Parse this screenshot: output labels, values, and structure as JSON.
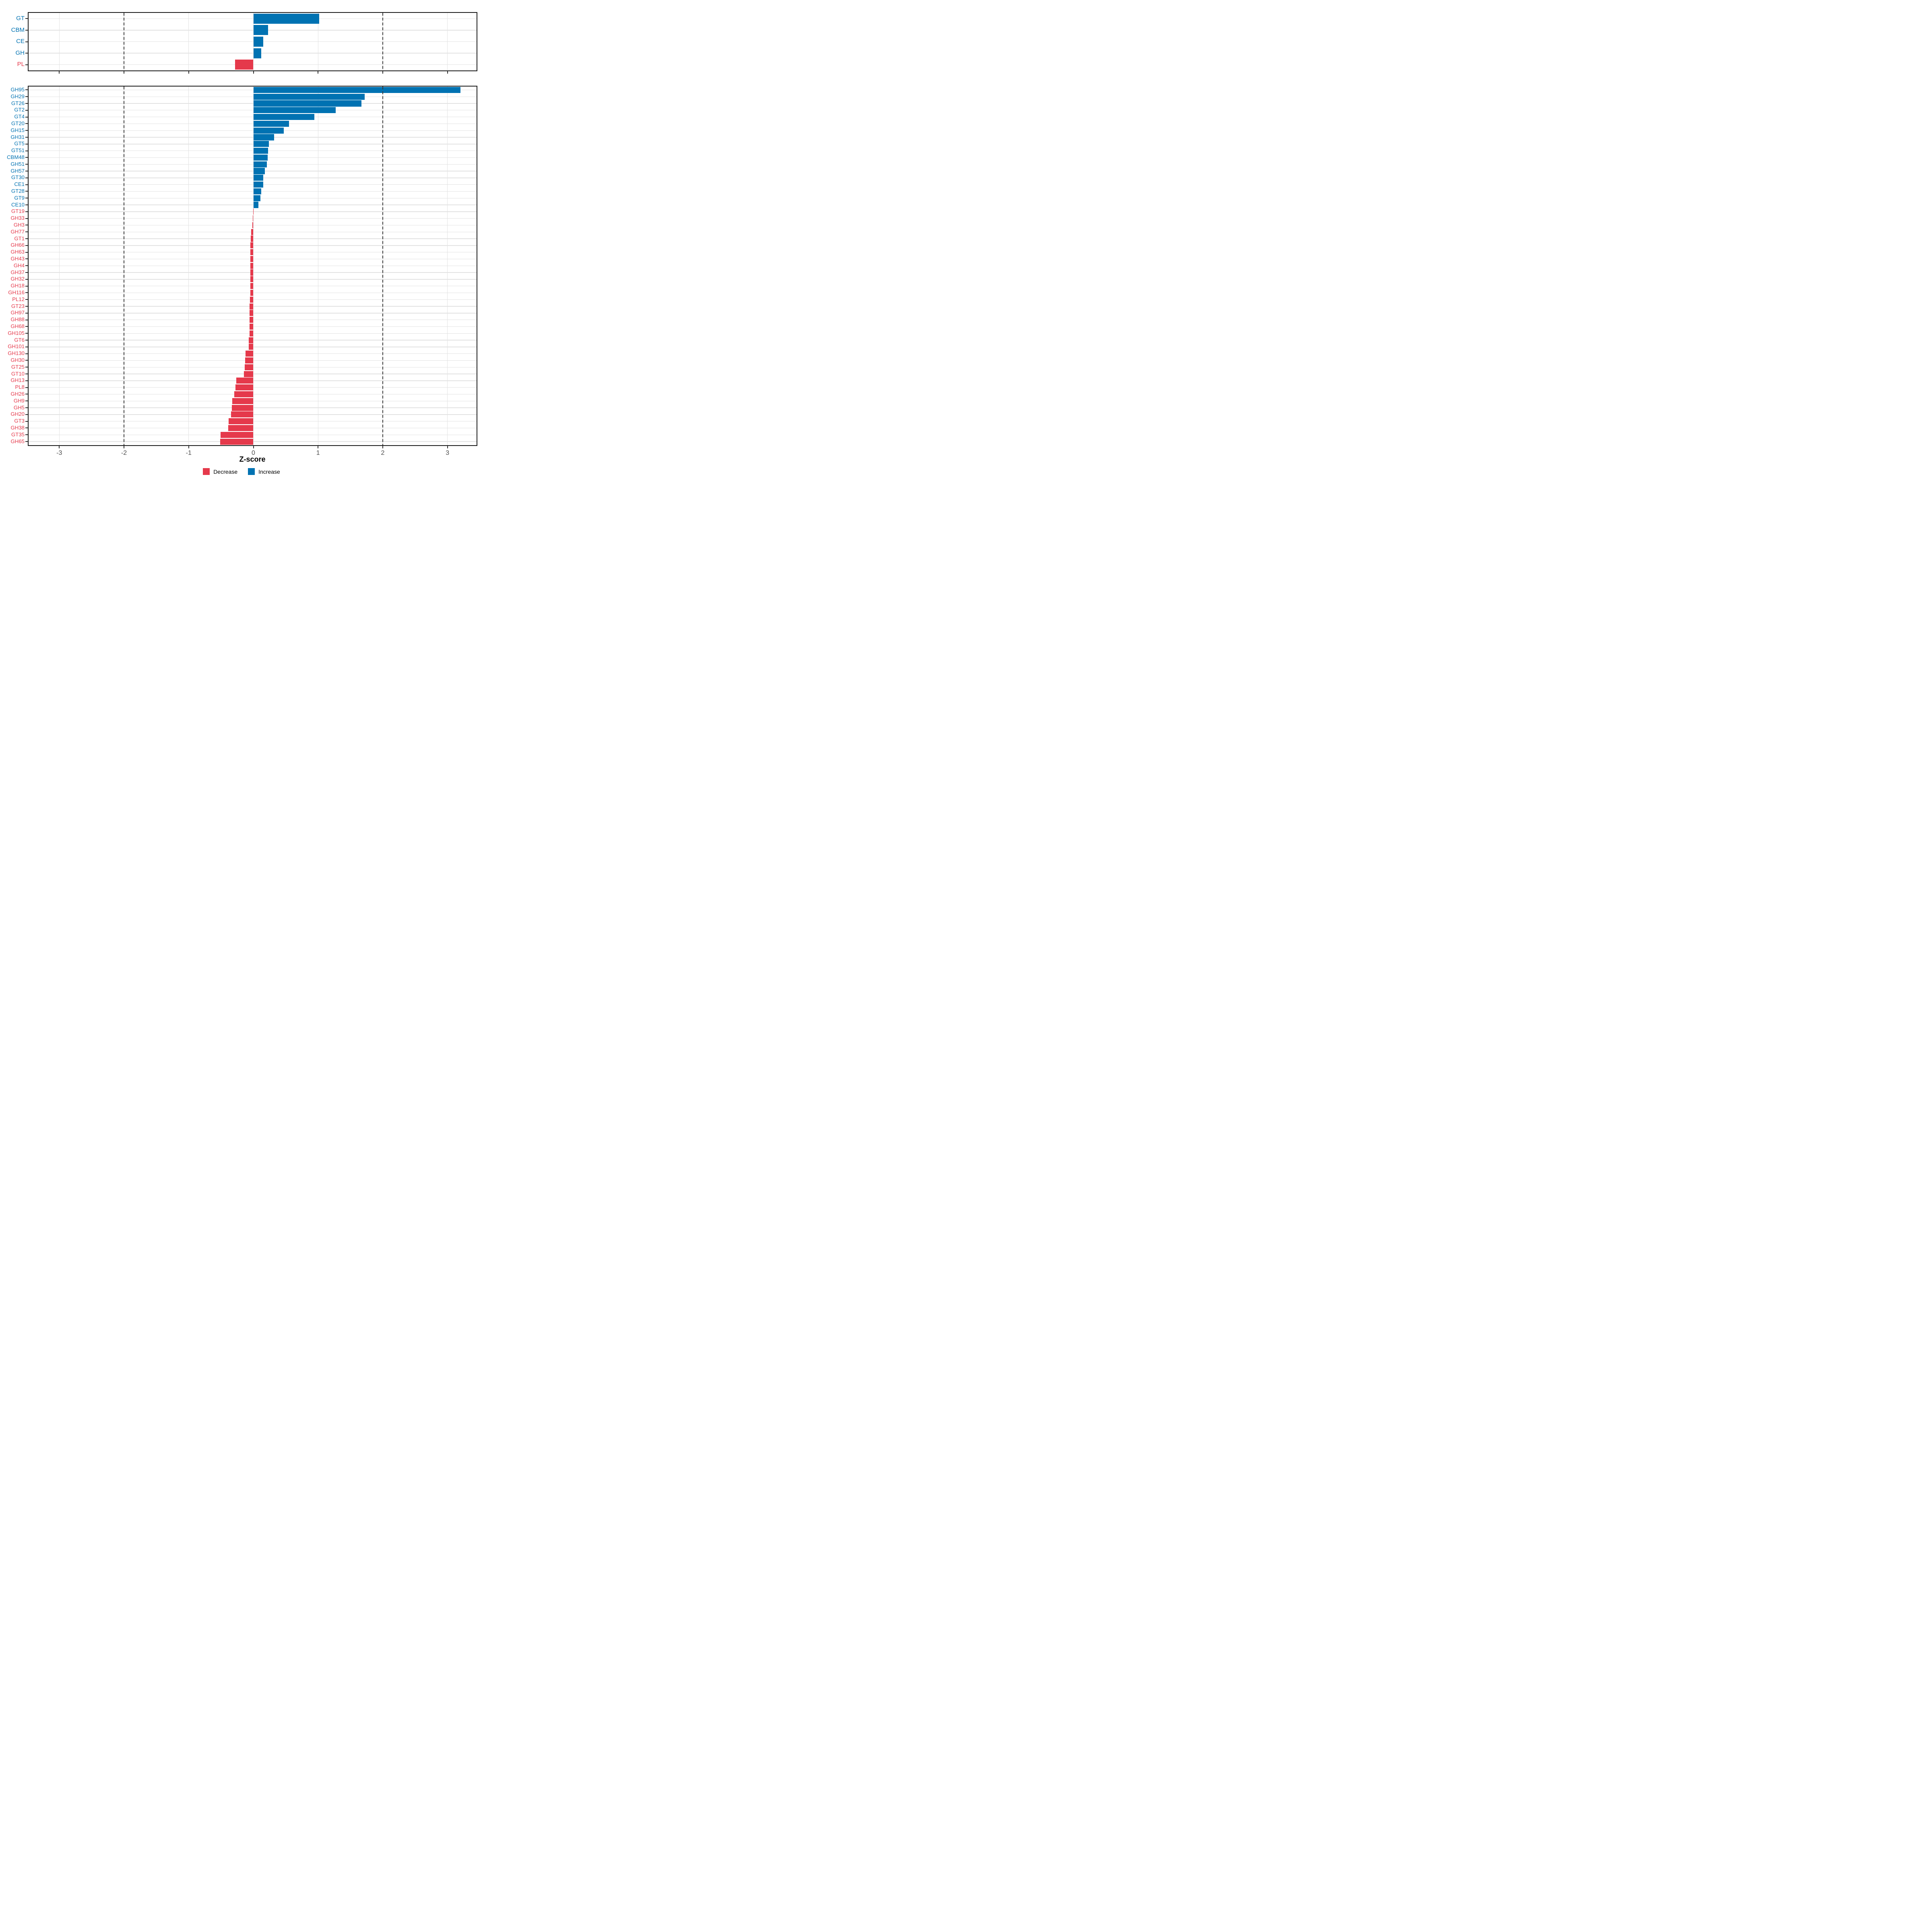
{
  "axis": {
    "xlabel": "Z-score",
    "xticks": [
      -3,
      -2,
      -1,
      0,
      1,
      2,
      3
    ],
    "xtick_labels": [
      "-3",
      "-2",
      "-1",
      "0",
      "1",
      "2",
      "3"
    ],
    "xlim": [
      -3.49,
      3.46
    ],
    "dashed_reference_lines": [
      -2,
      2
    ],
    "grid": "major-only"
  },
  "legend": {
    "position": "bottom-center",
    "items": [
      {
        "label": "Decrease",
        "color": "#E5394B"
      },
      {
        "label": "Increase",
        "color": "#0072B2"
      }
    ]
  },
  "colors": {
    "increase": "#0072B2",
    "decrease": "#E5394B",
    "gridline": "#e2e2e2",
    "panel_border": "#1a1a1a",
    "tick_text": "#4d4d4d",
    "background": "#ffffff"
  },
  "chart_data": [
    {
      "id": "cazyme-class-panel",
      "type": "bar",
      "orientation": "horizontal",
      "title": "",
      "xlabel": "Z-score",
      "xlim": [
        -3.49,
        3.46
      ],
      "xticks": [
        -3,
        -2,
        -1,
        0,
        1,
        2,
        3
      ],
      "dashed_reference_lines": [
        -2,
        2
      ],
      "categories": [
        "GT",
        "CBM",
        "CE",
        "GH",
        "PL"
      ],
      "values": [
        1.02,
        0.23,
        0.15,
        0.12,
        -0.28
      ],
      "directions": [
        "Increase",
        "Increase",
        "Increase",
        "Increase",
        "Decrease"
      ]
    },
    {
      "id": "cazyme-family-panel",
      "type": "bar",
      "orientation": "horizontal",
      "title": "",
      "xlabel": "Z-score",
      "xlim": [
        -3.49,
        3.46
      ],
      "xticks": [
        -3,
        -2,
        -1,
        0,
        1,
        2,
        3
      ],
      "dashed_reference_lines": [
        -2,
        2
      ],
      "categories": [
        "GH95",
        "GH29",
        "GT26",
        "GT2",
        "GT4",
        "GT20",
        "GH15",
        "GH31",
        "GT5",
        "GT51",
        "CBM48",
        "GH51",
        "GH57",
        "GT30",
        "CE1",
        "GT28",
        "GT9",
        "CE10",
        "GT19",
        "GH33",
        "GH3",
        "GH77",
        "GT1",
        "GH66",
        "GH63",
        "GH43",
        "GH4",
        "GH37",
        "GH32",
        "GH18",
        "GH116",
        "PL12",
        "GT23",
        "GH97",
        "GH88",
        "GH68",
        "GH105",
        "GT6",
        "GH101",
        "GH130",
        "GH30",
        "GT25",
        "GT10",
        "GH13",
        "PL8",
        "GH26",
        "GH9",
        "GH5",
        "GH20",
        "GT3",
        "GH38",
        "GT35",
        "GH65"
      ],
      "values": [
        3.2,
        1.72,
        1.67,
        1.27,
        0.94,
        0.55,
        0.47,
        0.32,
        0.24,
        0.23,
        0.22,
        0.21,
        0.18,
        0.15,
        0.15,
        0.12,
        0.11,
        0.08,
        -0.004,
        -0.008,
        -0.014,
        -0.035,
        -0.043,
        -0.044,
        -0.044,
        -0.044,
        -0.045,
        -0.045,
        -0.046,
        -0.046,
        -0.046,
        -0.055,
        -0.06,
        -0.06,
        -0.06,
        -0.06,
        -0.06,
        -0.073,
        -0.074,
        -0.119,
        -0.13,
        -0.134,
        -0.148,
        -0.267,
        -0.276,
        -0.296,
        -0.325,
        -0.33,
        -0.345,
        -0.385,
        -0.39,
        -0.51,
        -0.515
      ],
      "directions": [
        "Increase",
        "Increase",
        "Increase",
        "Increase",
        "Increase",
        "Increase",
        "Increase",
        "Increase",
        "Increase",
        "Increase",
        "Increase",
        "Increase",
        "Increase",
        "Increase",
        "Increase",
        "Increase",
        "Increase",
        "Increase",
        "Decrease",
        "Decrease",
        "Decrease",
        "Decrease",
        "Decrease",
        "Decrease",
        "Decrease",
        "Decrease",
        "Decrease",
        "Decrease",
        "Decrease",
        "Decrease",
        "Decrease",
        "Decrease",
        "Decrease",
        "Decrease",
        "Decrease",
        "Decrease",
        "Decrease",
        "Decrease",
        "Decrease",
        "Decrease",
        "Decrease",
        "Decrease",
        "Decrease",
        "Decrease",
        "Decrease",
        "Decrease",
        "Decrease",
        "Decrease",
        "Decrease",
        "Decrease",
        "Decrease",
        "Decrease",
        "Decrease"
      ]
    }
  ]
}
